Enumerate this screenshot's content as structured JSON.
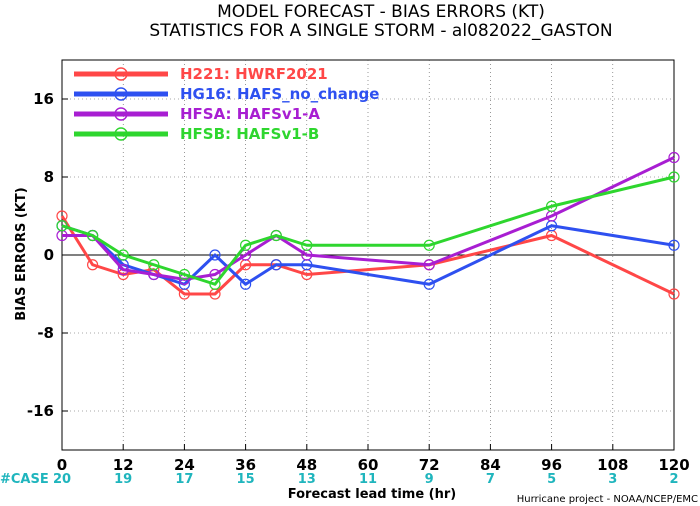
{
  "chart_data": {
    "type": "line",
    "title": "MODEL FORECAST - BIAS ERRORS (KT)",
    "subtitle": "STATISTICS FOR A SINGLE STORM - al082022_GASTON",
    "xlabel": "Forecast lead time (hr)",
    "ylabel": "BIAS ERRORS (KT)",
    "xlim": [
      0,
      120
    ],
    "ylim": [
      -20,
      20
    ],
    "x_ticks": [
      0,
      12,
      24,
      36,
      48,
      60,
      72,
      84,
      96,
      108,
      120
    ],
    "y_ticks": [
      -16,
      -8,
      0,
      8,
      16
    ],
    "grid": true,
    "legend_position": "top-left",
    "case_label": "#CASE",
    "case_counts": [
      20,
      19,
      17,
      15,
      13,
      11,
      9,
      7,
      5,
      3,
      2
    ],
    "credit": "Hurricane project - NOAA/NCEP/EMC",
    "series": [
      {
        "name": "H221: HWRF2021",
        "color": "#ff4747",
        "points": [
          [
            0,
            4
          ],
          [
            6,
            -1
          ],
          [
            12,
            -2
          ],
          [
            18,
            -1.5
          ],
          [
            24,
            -4
          ],
          [
            30,
            -4
          ],
          [
            36,
            -1
          ],
          [
            42,
            -1
          ],
          [
            48,
            -2
          ],
          [
            72,
            -1
          ],
          [
            96,
            2
          ],
          [
            120,
            -4
          ]
        ]
      },
      {
        "name": "HG16: HAFS_no_change",
        "color": "#2e50f0",
        "points": [
          [
            0,
            3
          ],
          [
            6,
            2
          ],
          [
            12,
            -1
          ],
          [
            18,
            -2
          ],
          [
            24,
            -3
          ],
          [
            30,
            0
          ],
          [
            36,
            -3
          ],
          [
            42,
            -1
          ],
          [
            48,
            -1
          ],
          [
            72,
            -3
          ],
          [
            96,
            3
          ],
          [
            120,
            1
          ]
        ]
      },
      {
        "name": "HFSA: HAFSv1-A",
        "color": "#a81ed2",
        "points": [
          [
            0,
            2
          ],
          [
            6,
            2
          ],
          [
            12,
            -1.5
          ],
          [
            18,
            -2
          ],
          [
            24,
            -2.5
          ],
          [
            30,
            -2
          ],
          [
            36,
            0
          ],
          [
            42,
            2
          ],
          [
            48,
            0
          ],
          [
            72,
            -1
          ],
          [
            96,
            4
          ],
          [
            120,
            10
          ]
        ]
      },
      {
        "name": "HFSB: HAFSv1-B",
        "color": "#2ed62e",
        "points": [
          [
            0,
            3
          ],
          [
            6,
            2
          ],
          [
            12,
            0
          ],
          [
            18,
            -1
          ],
          [
            24,
            -2
          ],
          [
            30,
            -3
          ],
          [
            36,
            1
          ],
          [
            42,
            2
          ],
          [
            48,
            1
          ],
          [
            72,
            1
          ],
          [
            96,
            5
          ],
          [
            120,
            8
          ]
        ]
      }
    ]
  }
}
